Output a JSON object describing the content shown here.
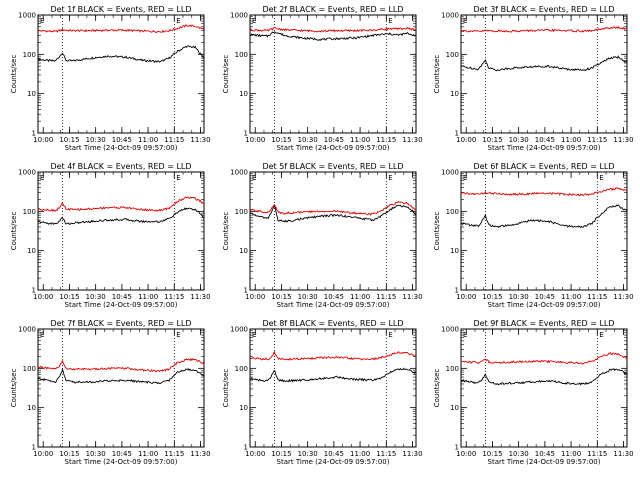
{
  "chart_data": [
    {
      "type": "line",
      "title": "Det 1f BLACK = Events, RED = LLD",
      "xlabel": "Start Time (24-Oct-09 09:57:00)",
      "ylabel": "Counts/sec",
      "x_ticks": [
        "10:00",
        "10:15",
        "10:30",
        "10:45",
        "11:00",
        "11:15",
        "11:30"
      ],
      "y_ticks": [
        "1",
        "10",
        "100",
        "1000"
      ],
      "xlim_min": [
        0,
        95
      ],
      "ylim": [
        1,
        1000
      ],
      "yscale": "log",
      "flags": [
        "E",
        "E"
      ],
      "vlines_min": [
        14,
        78
      ],
      "series": [
        {
          "color": "#000000",
          "x_min": [
            0,
            5,
            10,
            12,
            14,
            16,
            20,
            30,
            40,
            50,
            60,
            70,
            75,
            80,
            85,
            90,
            95
          ],
          "values": [
            75,
            70,
            68,
            85,
            110,
            70,
            68,
            80,
            90,
            85,
            70,
            65,
            80,
            120,
            160,
            150,
            80
          ]
        },
        {
          "color": "#dd0000",
          "x_min": [
            0,
            5,
            10,
            14,
            20,
            30,
            40,
            50,
            60,
            70,
            75,
            80,
            85,
            90,
            95
          ],
          "values": [
            400,
            390,
            380,
            420,
            400,
            400,
            410,
            410,
            390,
            380,
            400,
            460,
            540,
            520,
            430
          ]
        }
      ]
    },
    {
      "type": "line",
      "title": "Det 2f BLACK = Events, RED = LLD",
      "xlabel": "Start Time (24-Oct-09 09:57:00)",
      "ylabel": "Counts/sec",
      "x_ticks": [
        "10:00",
        "10:15",
        "10:30",
        "10:45",
        "11:00",
        "11:15",
        "11:30"
      ],
      "y_ticks": [
        "1",
        "10",
        "100",
        "1000"
      ],
      "xlim_min": [
        0,
        95
      ],
      "ylim": [
        1,
        1000
      ],
      "yscale": "log",
      "flags": [
        "E",
        "E"
      ],
      "vlines_min": [
        14,
        78
      ],
      "series": [
        {
          "color": "#000000",
          "x_min": [
            0,
            5,
            10,
            14,
            20,
            30,
            40,
            50,
            60,
            70,
            75,
            80,
            85,
            90,
            95
          ],
          "values": [
            320,
            300,
            290,
            380,
            300,
            260,
            240,
            250,
            260,
            300,
            320,
            330,
            310,
            340,
            300
          ]
        },
        {
          "color": "#dd0000",
          "x_min": [
            0,
            5,
            10,
            14,
            20,
            30,
            40,
            50,
            60,
            70,
            75,
            80,
            85,
            90,
            95
          ],
          "values": [
            420,
            410,
            400,
            460,
            420,
            400,
            390,
            400,
            400,
            410,
            430,
            450,
            440,
            460,
            420
          ]
        }
      ]
    },
    {
      "type": "line",
      "title": "Det 3f BLACK = Events, RED = LLD",
      "xlabel": "Start Time (24-Oct-09 09:57:00)",
      "ylabel": "Counts/sec",
      "x_ticks": [
        "10:00",
        "10:15",
        "10:30",
        "10:45",
        "11:00",
        "11:15",
        "11:30"
      ],
      "y_ticks": [
        "1",
        "10",
        "100",
        "1000"
      ],
      "xlim_min": [
        0,
        95
      ],
      "ylim": [
        1,
        1000
      ],
      "yscale": "log",
      "flags": [
        "E",
        "E"
      ],
      "vlines_min": [
        14,
        78
      ],
      "series": [
        {
          "color": "#000000",
          "x_min": [
            0,
            5,
            10,
            12,
            14,
            16,
            20,
            30,
            40,
            50,
            60,
            70,
            75,
            80,
            85,
            90,
            95
          ],
          "values": [
            50,
            45,
            42,
            55,
            70,
            45,
            40,
            45,
            48,
            50,
            42,
            40,
            45,
            60,
            80,
            85,
            60
          ]
        },
        {
          "color": "#dd0000",
          "x_min": [
            0,
            5,
            10,
            14,
            20,
            30,
            40,
            50,
            60,
            70,
            75,
            80,
            85,
            90,
            95
          ],
          "values": [
            400,
            390,
            380,
            400,
            390,
            390,
            400,
            410,
            400,
            390,
            400,
            430,
            470,
            480,
            440
          ]
        }
      ]
    },
    {
      "type": "line",
      "title": "Det 4f BLACK = Events, RED = LLD",
      "xlabel": "Start Time (24-Oct-09 09:57:00)",
      "ylabel": "Counts/sec",
      "x_ticks": [
        "10:00",
        "10:15",
        "10:30",
        "10:45",
        "11:00",
        "11:15",
        "11:30"
      ],
      "y_ticks": [
        "1",
        "10",
        "100",
        "1000"
      ],
      "xlim_min": [
        0,
        95
      ],
      "ylim": [
        1,
        1000
      ],
      "yscale": "log",
      "flags": [
        "E",
        "E"
      ],
      "vlines_min": [
        14,
        78
      ],
      "series": [
        {
          "color": "#000000",
          "x_min": [
            0,
            5,
            10,
            12,
            14,
            16,
            20,
            30,
            40,
            50,
            60,
            70,
            75,
            80,
            85,
            90,
            95
          ],
          "values": [
            55,
            50,
            48,
            55,
            70,
            48,
            50,
            55,
            60,
            62,
            55,
            55,
            65,
            95,
            120,
            110,
            70
          ]
        },
        {
          "color": "#dd0000",
          "x_min": [
            0,
            5,
            10,
            12,
            14,
            16,
            20,
            30,
            40,
            50,
            60,
            70,
            75,
            80,
            85,
            90,
            95
          ],
          "values": [
            115,
            110,
            105,
            120,
            160,
            115,
            110,
            115,
            125,
            125,
            110,
            105,
            120,
            180,
            230,
            210,
            160
          ]
        }
      ]
    },
    {
      "type": "line",
      "title": "Det 5f BLACK = Events, RED = LLD",
      "xlabel": "Start Time (24-Oct-09 09:57:00)",
      "ylabel": "Counts/sec",
      "x_ticks": [
        "10:00",
        "10:15",
        "10:30",
        "10:45",
        "11:00",
        "11:15",
        "11:30"
      ],
      "y_ticks": [
        "1",
        "10",
        "100",
        "1000"
      ],
      "xlim_min": [
        0,
        95
      ],
      "ylim": [
        1,
        1000
      ],
      "yscale": "log",
      "flags": [
        "E",
        "E"
      ],
      "vlines_min": [
        14,
        78
      ],
      "series": [
        {
          "color": "#000000",
          "x_min": [
            0,
            5,
            10,
            12,
            14,
            16,
            20,
            30,
            40,
            50,
            60,
            70,
            75,
            80,
            85,
            90,
            95
          ],
          "values": [
            90,
            75,
            65,
            90,
            140,
            60,
            55,
            65,
            75,
            80,
            70,
            60,
            75,
            110,
            140,
            130,
            85
          ]
        },
        {
          "color": "#dd0000",
          "x_min": [
            0,
            5,
            10,
            12,
            14,
            16,
            20,
            30,
            40,
            50,
            60,
            70,
            75,
            80,
            85,
            90,
            95
          ],
          "values": [
            110,
            100,
            95,
            110,
            150,
            95,
            90,
            95,
            100,
            100,
            90,
            85,
            100,
            140,
            170,
            160,
            110
          ]
        }
      ]
    },
    {
      "type": "line",
      "title": "Det 6f BLACK = Events, RED = LLD",
      "xlabel": "Start Time (24-Oct-09 09:57:00)",
      "ylabel": "Counts/sec",
      "x_ticks": [
        "10:00",
        "10:15",
        "10:30",
        "10:45",
        "11:00",
        "11:15",
        "11:30"
      ],
      "y_ticks": [
        "1",
        "10",
        "100",
        "1000"
      ],
      "xlim_min": [
        0,
        95
      ],
      "ylim": [
        1,
        1000
      ],
      "yscale": "log",
      "flags": [
        "E",
        "E"
      ],
      "vlines_min": [
        14,
        78
      ],
      "series": [
        {
          "color": "#000000",
          "x_min": [
            0,
            5,
            10,
            12,
            14,
            16,
            20,
            30,
            40,
            50,
            60,
            70,
            75,
            80,
            85,
            90,
            95
          ],
          "values": [
            50,
            45,
            42,
            55,
            80,
            45,
            40,
            45,
            60,
            55,
            42,
            40,
            50,
            85,
            130,
            140,
            100
          ]
        },
        {
          "color": "#dd0000",
          "x_min": [
            0,
            5,
            10,
            14,
            20,
            30,
            40,
            50,
            60,
            70,
            75,
            80,
            85,
            90,
            95
          ],
          "values": [
            290,
            280,
            270,
            300,
            280,
            270,
            280,
            290,
            270,
            260,
            280,
            320,
            360,
            380,
            330
          ]
        }
      ]
    },
    {
      "type": "line",
      "title": "Det 7f BLACK = Events, RED = LLD",
      "xlabel": "Start Time (24-Oct-09 09:57:00)",
      "ylabel": "Counts/sec",
      "x_ticks": [
        "10:00",
        "10:15",
        "10:30",
        "10:45",
        "11:00",
        "11:15",
        "11:30"
      ],
      "y_ticks": [
        "1",
        "10",
        "100",
        "1000"
      ],
      "xlim_min": [
        0,
        95
      ],
      "ylim": [
        1,
        1000
      ],
      "yscale": "log",
      "flags": [
        "E",
        "E"
      ],
      "vlines_min": [
        14,
        78
      ],
      "series": [
        {
          "color": "#000000",
          "x_min": [
            0,
            5,
            10,
            12,
            14,
            16,
            20,
            30,
            40,
            50,
            60,
            70,
            75,
            80,
            85,
            90,
            95
          ],
          "values": [
            55,
            50,
            45,
            60,
            90,
            50,
            45,
            45,
            48,
            50,
            45,
            42,
            50,
            80,
            95,
            90,
            65
          ]
        },
        {
          "color": "#dd0000",
          "x_min": [
            0,
            5,
            10,
            12,
            14,
            16,
            20,
            30,
            40,
            50,
            60,
            70,
            75,
            80,
            85,
            90,
            95
          ],
          "values": [
            110,
            100,
            95,
            110,
            150,
            100,
            95,
            95,
            100,
            100,
            90,
            85,
            95,
            140,
            170,
            165,
            130
          ]
        }
      ]
    },
    {
      "type": "line",
      "title": "Det 8f BLACK = Events, RED = LLD",
      "xlabel": "Start Time (24-Oct-09 09:57:00)",
      "ylabel": "Counts/sec",
      "x_ticks": [
        "10:00",
        "10:15",
        "10:30",
        "10:45",
        "11:00",
        "11:15",
        "11:30"
      ],
      "y_ticks": [
        "1",
        "10",
        "100",
        "1000"
      ],
      "xlim_min": [
        0,
        95
      ],
      "ylim": [
        1,
        1000
      ],
      "yscale": "log",
      "flags": [
        "E",
        "E"
      ],
      "vlines_min": [
        14,
        78
      ],
      "series": [
        {
          "color": "#000000",
          "x_min": [
            0,
            5,
            10,
            12,
            14,
            16,
            20,
            30,
            40,
            50,
            60,
            70,
            75,
            80,
            85,
            90,
            95
          ],
          "values": [
            55,
            50,
            48,
            60,
            90,
            50,
            48,
            50,
            55,
            60,
            52,
            50,
            55,
            80,
            95,
            95,
            75
          ]
        },
        {
          "color": "#dd0000",
          "x_min": [
            0,
            5,
            10,
            12,
            14,
            16,
            20,
            30,
            40,
            50,
            60,
            70,
            75,
            80,
            85,
            90,
            95
          ],
          "values": [
            185,
            175,
            170,
            190,
            250,
            175,
            170,
            175,
            185,
            190,
            175,
            170,
            185,
            220,
            250,
            245,
            210
          ]
        }
      ]
    },
    {
      "type": "line",
      "title": "Det 9f BLACK = Events, RED = LLD",
      "xlabel": "Start Time (24-Oct-09 09:57:00)",
      "ylabel": "Counts/sec",
      "x_ticks": [
        "10:00",
        "10:15",
        "10:30",
        "10:45",
        "11:00",
        "11:15",
        "11:30"
      ],
      "y_ticks": [
        "1",
        "10",
        "100",
        "1000"
      ],
      "xlim_min": [
        0,
        95
      ],
      "ylim": [
        1,
        1000
      ],
      "yscale": "log",
      "flags": [
        "E",
        "E"
      ],
      "vlines_min": [
        14,
        78
      ],
      "series": [
        {
          "color": "#000000",
          "x_min": [
            0,
            5,
            10,
            12,
            14,
            16,
            20,
            30,
            40,
            50,
            60,
            70,
            75,
            80,
            85,
            90,
            95
          ],
          "values": [
            50,
            45,
            42,
            52,
            70,
            45,
            40,
            42,
            45,
            48,
            42,
            40,
            45,
            70,
            90,
            95,
            70
          ]
        },
        {
          "color": "#dd0000",
          "x_min": [
            0,
            5,
            10,
            12,
            14,
            16,
            20,
            30,
            40,
            50,
            60,
            70,
            75,
            80,
            85,
            90,
            95
          ],
          "values": [
            150,
            145,
            140,
            150,
            175,
            145,
            140,
            145,
            150,
            150,
            140,
            135,
            150,
            200,
            240,
            230,
            180
          ]
        }
      ]
    }
  ]
}
